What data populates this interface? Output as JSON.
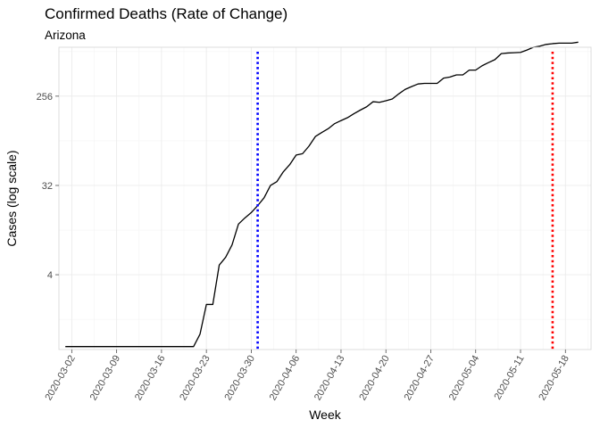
{
  "chart_data": {
    "type": "line",
    "title": "Confirmed Deaths (Rate of Change)",
    "subtitle": "Arizona",
    "xlabel": "Week",
    "ylabel": "Cases (log scale)",
    "y_scale": "log2",
    "ylim": [
      0.7,
      800
    ],
    "xlim": [
      "2020-02-29",
      "2020-05-22"
    ],
    "y_ticks": [
      4,
      32,
      256
    ],
    "y_tick_labels": [
      "4",
      "32",
      "256"
    ],
    "x_ticks": [
      "2020-03-02",
      "2020-03-09",
      "2020-03-16",
      "2020-03-23",
      "2020-03-30",
      "2020-04-06",
      "2020-04-13",
      "2020-04-20",
      "2020-04-27",
      "2020-05-04",
      "2020-05-11",
      "2020-05-18"
    ],
    "grid": true,
    "legend": "none",
    "series": [
      {
        "color": "#000000",
        "x": [
          "2020-03-01",
          "2020-03-21",
          "2020-03-22",
          "2020-03-23",
          "2020-03-24",
          "2020-03-25",
          "2020-03-26",
          "2020-03-27",
          "2020-03-28",
          "2020-03-29",
          "2020-03-30",
          "2020-03-31",
          "2020-04-01",
          "2020-04-02",
          "2020-04-03",
          "2020-04-04",
          "2020-04-05",
          "2020-04-06",
          "2020-04-07",
          "2020-04-08",
          "2020-04-09",
          "2020-04-10",
          "2020-04-11",
          "2020-04-12",
          "2020-04-13",
          "2020-04-14",
          "2020-04-15",
          "2020-04-16",
          "2020-04-17",
          "2020-04-18",
          "2020-04-19",
          "2020-04-20",
          "2020-04-21",
          "2020-04-22",
          "2020-04-23",
          "2020-04-24",
          "2020-04-25",
          "2020-04-26",
          "2020-04-27",
          "2020-04-28",
          "2020-04-29",
          "2020-04-30",
          "2020-05-01",
          "2020-05-02",
          "2020-05-03",
          "2020-05-04",
          "2020-05-05",
          "2020-05-06",
          "2020-05-07",
          "2020-05-08",
          "2020-05-09",
          "2020-05-10",
          "2020-05-11",
          "2020-05-12",
          "2020-05-13",
          "2020-05-14",
          "2020-05-15",
          "2020-05-16",
          "2020-05-17",
          "2020-05-18",
          "2020-05-19",
          "2020-05-20"
        ],
        "y": [
          0.75,
          0.75,
          1,
          2,
          2,
          5,
          6,
          8,
          13,
          15,
          17,
          20,
          24,
          32,
          35,
          44,
          52,
          65,
          67,
          80,
          100,
          110,
          120,
          135,
          145,
          155,
          170,
          185,
          200,
          225,
          222,
          230,
          240,
          270,
          300,
          320,
          340,
          345,
          345,
          345,
          390,
          400,
          420,
          420,
          470,
          470,
          520,
          560,
          600,
          690,
          700,
          705,
          710,
          750,
          800,
          820,
          855,
          870,
          880,
          880,
          880,
          900
        ]
      }
    ],
    "vlines": [
      {
        "x": "2020-03-31",
        "color": "#0000ff",
        "style": "dotted"
      },
      {
        "x": "2020-05-16",
        "color": "#ff0000",
        "style": "dotted"
      }
    ]
  }
}
